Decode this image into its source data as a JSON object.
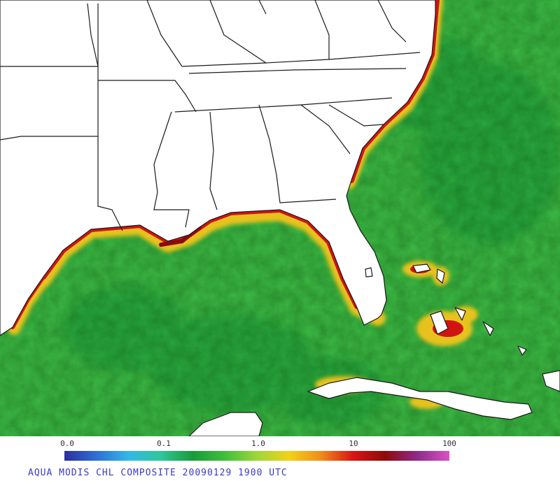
{
  "caption": "AQUA MODIS CHL COMPOSITE 20090129 1900 UTC",
  "colorbar": {
    "ticks": [
      "0.0",
      "0.1",
      "1.0",
      "10",
      "100"
    ],
    "stops": [
      "#2c2f9c",
      "#2f6fd4",
      "#33b8e8",
      "#2fc79a",
      "#1a9a3a",
      "#3fbf3a",
      "#9dd63a",
      "#f2d21a",
      "#f08c1a",
      "#d81414",
      "#8e0a0a",
      "#8f2a8a",
      "#d653c8"
    ]
  },
  "colors": {
    "land": "#ffffff",
    "border": "#1a1a1a",
    "ocean_base": "#3db845",
    "ocean_dark": "#1f9a3a",
    "coast_yellow": "#e8c21c",
    "coast_red": "#d01414",
    "coast_dark": "#8a0a0a",
    "purple": "#8a3a98",
    "caption": "#3a3ac8"
  }
}
